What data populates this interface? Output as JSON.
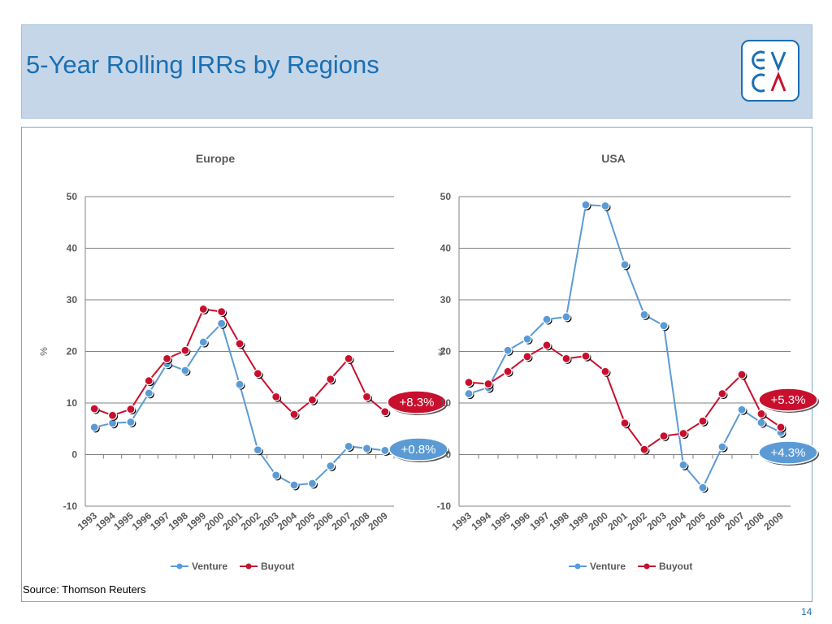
{
  "header": {
    "title": "5-Year Rolling IRRs by Regions",
    "logo_text": "EVCA"
  },
  "footer": {
    "source": "Source: Thomson Reuters",
    "page_number": "14"
  },
  "colors": {
    "venture": "#5b9bd5",
    "buyout": "#c8102e",
    "header_bg": "#c5d6e8",
    "title": "#1a6fb3"
  },
  "chart_data": [
    {
      "type": "line",
      "title": "Europe",
      "xlabel": "",
      "ylabel": "%",
      "ylim": [
        -10,
        50
      ],
      "yticks": [
        -10,
        0,
        10,
        20,
        30,
        40,
        50
      ],
      "grid": "horizontal",
      "legend": "bottom",
      "categories": [
        "1993",
        "1994",
        "1995",
        "1996",
        "1997",
        "1998",
        "1999",
        "2000",
        "2001",
        "2002",
        "2003",
        "2004",
        "2005",
        "2006",
        "2007",
        "2008",
        "2009"
      ],
      "series": [
        {
          "name": "Venture",
          "color": "#5b9bd5",
          "values": [
            5.3,
            6.1,
            6.3,
            11.9,
            17.6,
            16.3,
            21.8,
            25.4,
            13.6,
            0.9,
            -4.0,
            -5.9,
            -5.6,
            -2.2,
            1.6,
            1.2,
            0.8
          ]
        },
        {
          "name": "Buyout",
          "color": "#c8102e",
          "values": [
            8.9,
            7.6,
            8.8,
            14.3,
            18.6,
            20.2,
            28.2,
            27.7,
            21.5,
            15.7,
            11.2,
            7.8,
            10.6,
            14.6,
            18.6,
            11.2,
            8.3
          ]
        }
      ],
      "annotations": [
        {
          "text": "+8.3%",
          "series": "Buyout",
          "color": "#c8102e"
        },
        {
          "text": "+0.8%",
          "series": "Venture",
          "color": "#5b9bd5"
        }
      ]
    },
    {
      "type": "line",
      "title": "USA",
      "xlabel": "",
      "ylabel": "%",
      "ylim": [
        -10,
        50
      ],
      "yticks": [
        -10,
        0,
        10,
        20,
        30,
        40,
        50
      ],
      "grid": "horizontal",
      "legend": "bottom",
      "categories": [
        "1993",
        "1994",
        "1995",
        "1996",
        "1997",
        "1998",
        "1999",
        "2000",
        "2001",
        "2002",
        "2003",
        "2004",
        "2005",
        "2006",
        "2007",
        "2008",
        "2009"
      ],
      "series": [
        {
          "name": "Venture",
          "color": "#5b9bd5",
          "values": [
            11.8,
            13.0,
            20.2,
            22.4,
            26.2,
            26.7,
            48.4,
            48.2,
            36.8,
            27.1,
            25.0,
            -2.0,
            -6.4,
            1.5,
            8.7,
            6.2,
            4.3
          ]
        },
        {
          "name": "Buyout",
          "color": "#c8102e",
          "values": [
            14.0,
            13.7,
            16.1,
            19.0,
            21.2,
            18.6,
            19.1,
            16.1,
            6.1,
            1.0,
            3.6,
            4.1,
            6.5,
            11.8,
            15.5,
            7.9,
            5.3
          ]
        }
      ],
      "annotations": [
        {
          "text": "+5.3%",
          "series": "Buyout",
          "color": "#c8102e"
        },
        {
          "text": "+4.3%",
          "series": "Venture",
          "color": "#5b9bd5"
        }
      ]
    }
  ]
}
